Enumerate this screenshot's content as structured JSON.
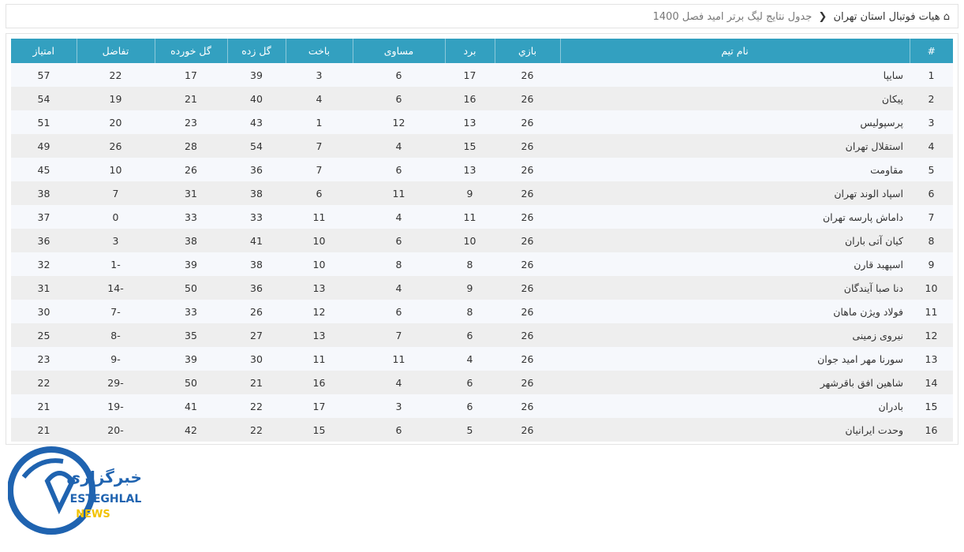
{
  "breadcrumb": {
    "home_icon": "home-icon",
    "parent": "هیات فوتبال استان تهران",
    "separator_icon": "chevron-left-icon",
    "current": "جدول نتایج لیگ برتر امید فصل 1400"
  },
  "table": {
    "headers": [
      "#",
      "نام تیم",
      "بازي",
      "برد",
      "مساوی",
      "باخت",
      "گل زده",
      "گل خورده",
      "تفاضل",
      "امتیاز"
    ],
    "rows": [
      [
        "1",
        "سایپا",
        "26",
        "17",
        "6",
        "3",
        "39",
        "17",
        "22",
        "57"
      ],
      [
        "2",
        "پیکان",
        "26",
        "16",
        "6",
        "4",
        "40",
        "21",
        "19",
        "54"
      ],
      [
        "3",
        "پرسپولیس",
        "26",
        "13",
        "12",
        "1",
        "43",
        "23",
        "20",
        "51"
      ],
      [
        "4",
        "استقلال تهران",
        "26",
        "15",
        "4",
        "7",
        "54",
        "28",
        "26",
        "49"
      ],
      [
        "5",
        "مقاومت",
        "26",
        "13",
        "6",
        "7",
        "36",
        "26",
        "10",
        "45"
      ],
      [
        "6",
        "اسپاد الوند تهران",
        "26",
        "9",
        "11",
        "6",
        "38",
        "31",
        "7",
        "38"
      ],
      [
        "7",
        "داماش پارسه تهران",
        "26",
        "11",
        "4",
        "11",
        "33",
        "33",
        "0",
        "37"
      ],
      [
        "8",
        "کیان آتی باران",
        "26",
        "10",
        "6",
        "10",
        "41",
        "38",
        "3",
        "36"
      ],
      [
        "9",
        "اسپهبد قارن",
        "26",
        "8",
        "8",
        "10",
        "38",
        "39",
        "-1",
        "32"
      ],
      [
        "10",
        "دنا صبا آیندگان",
        "26",
        "9",
        "4",
        "13",
        "36",
        "50",
        "-14",
        "31"
      ],
      [
        "11",
        "فولاد ویژن ماهان",
        "26",
        "8",
        "6",
        "12",
        "26",
        "33",
        "-7",
        "30"
      ],
      [
        "12",
        "نیروی زمینی",
        "26",
        "6",
        "7",
        "13",
        "27",
        "35",
        "-8",
        "25"
      ],
      [
        "13",
        "سورنا مهر امید جوان",
        "26",
        "4",
        "11",
        "11",
        "30",
        "39",
        "-9",
        "23"
      ],
      [
        "14",
        "شاهین افق باقرشهر",
        "26",
        "6",
        "4",
        "16",
        "21",
        "50",
        "-29",
        "22"
      ],
      [
        "15",
        "بادران",
        "26",
        "6",
        "3",
        "17",
        "22",
        "41",
        "-19",
        "21"
      ],
      [
        "16",
        "وحدت ایرانیان",
        "26",
        "5",
        "6",
        "15",
        "22",
        "42",
        "-20",
        "21"
      ]
    ]
  },
  "logo": {
    "text_fa": "خبرگزاری",
    "text_en": "ESTEGHLAL",
    "text_news": "NEWS"
  },
  "colors": {
    "header": "#33a0c0",
    "logo_blue": "#1f63b0",
    "logo_yellow": "#f2c200"
  }
}
